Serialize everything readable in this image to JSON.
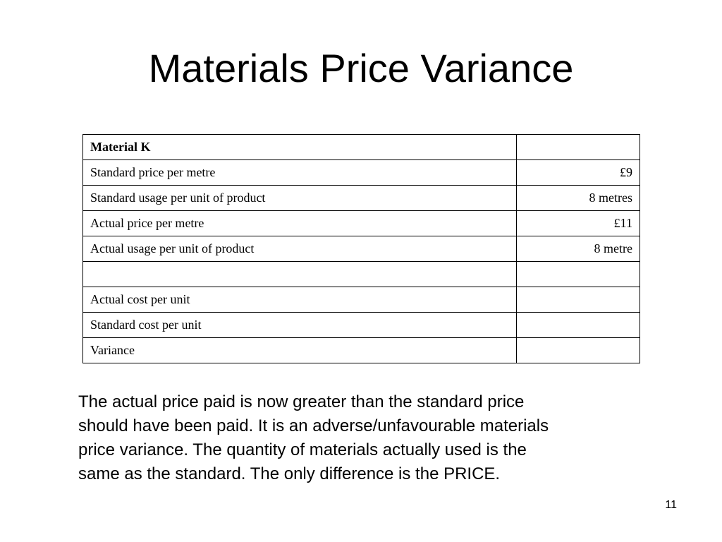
{
  "header": {
    "title": "Materials Price Variance"
  },
  "table": {
    "rows": [
      [
        "Material K",
        null
      ],
      [
        "Standard price per metre",
        "£9"
      ],
      [
        "Standard usage per unit of product",
        "8 metres"
      ],
      [
        "Actual price per metre",
        "£11"
      ],
      [
        "Actual usage per unit of product",
        "8 metre"
      ],
      [
        null,
        null
      ],
      [
        "Actual cost per unit",
        null
      ],
      [
        "Standard cost per unit",
        null
      ],
      [
        "Variance",
        null
      ]
    ]
  },
  "body": {
    "lines": [
      "The actual price paid is now greater than the standard price",
      "should have been paid. It is an adverse/unfavourable materials",
      "price variance. The quantity of materials actually used is the",
      "same as the standard. The only difference is the PRICE."
    ]
  },
  "footer": {
    "page_number": "11"
  }
}
